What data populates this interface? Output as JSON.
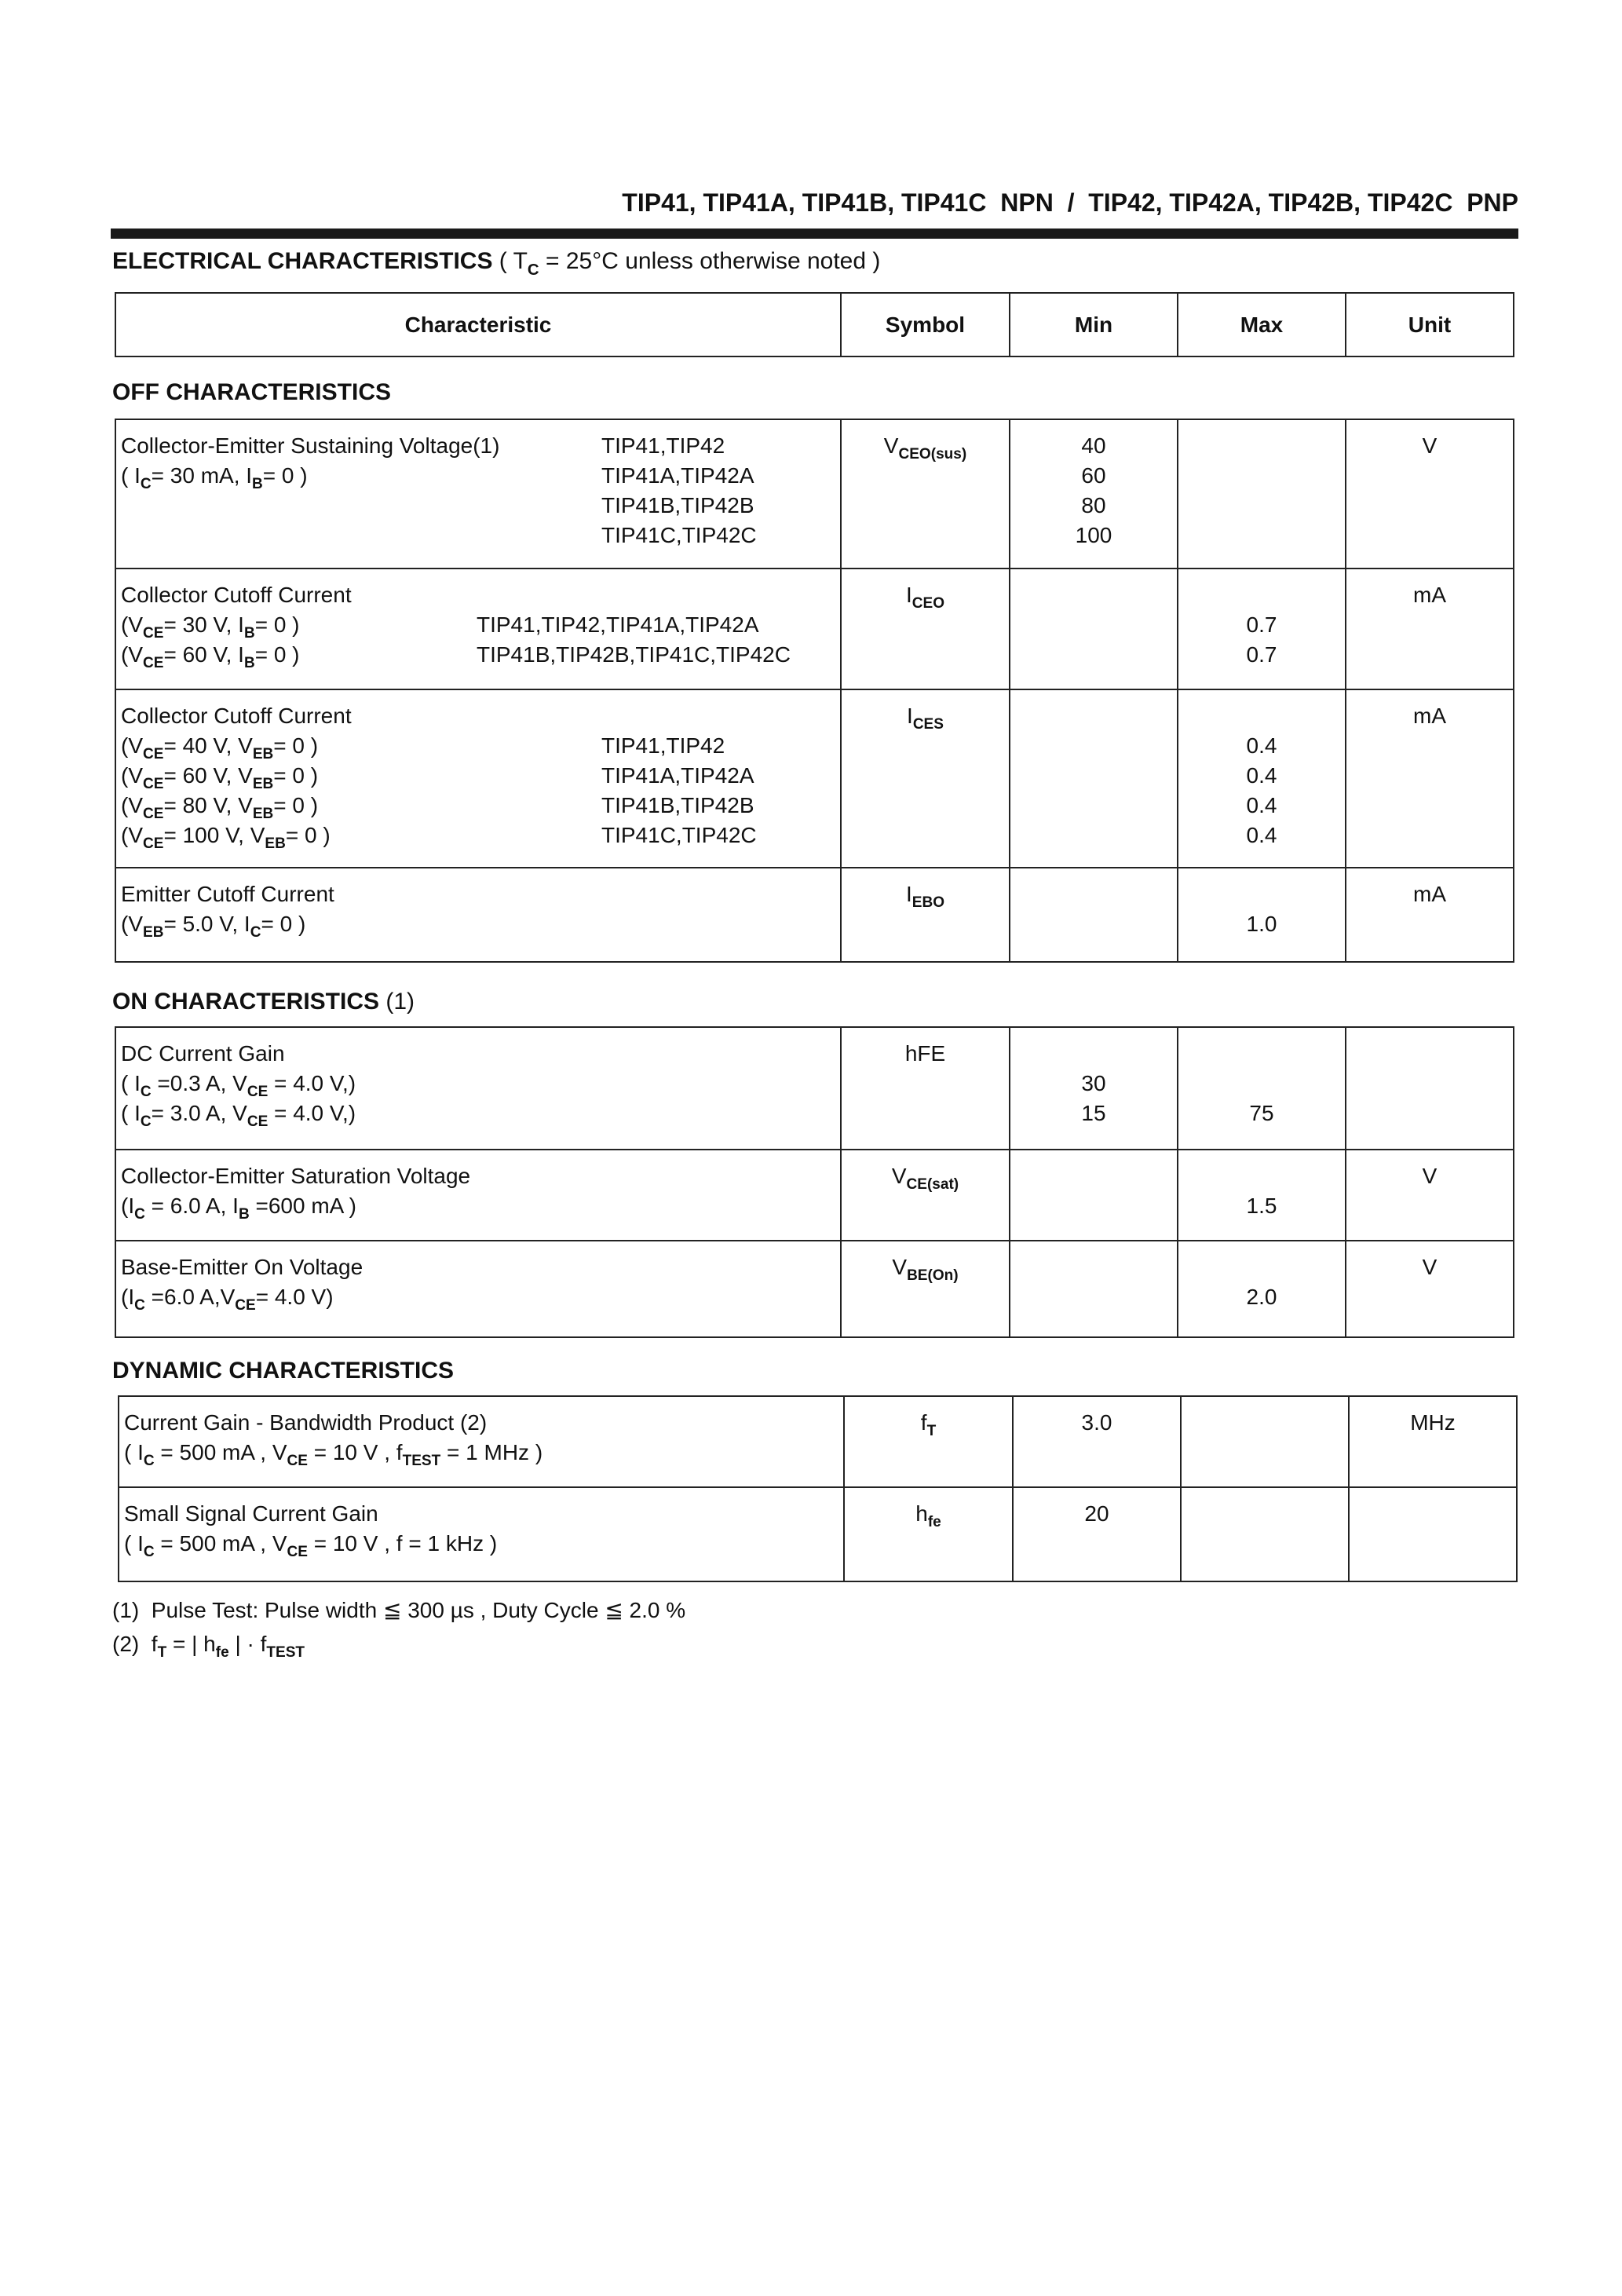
{
  "header": {
    "title": "TIP41, TIP41A, TIP41B, TIP41C  NPN  /  TIP42, TIP42A, TIP42B, TIP42C  PNP"
  },
  "electrical": {
    "heading": "ELECTRICAL CHARACTERISTICS",
    "note": [
      " ( T",
      {
        "sub": "C"
      },
      " = 25°C unless otherwise noted )"
    ]
  },
  "columns": [
    "Characteristic",
    "Symbol",
    "Min",
    "Max",
    "Unit"
  ],
  "sections": [
    {
      "title": "OFF CHARACTERISTICS",
      "rows": [
        {
          "lines": [
            [
              "Collector-Emitter Sustaining Voltage(1)"
            ],
            [
              "( I",
              {
                "sub": "C"
              },
              "= 30 mA, I",
              {
                "sub": "B"
              },
              "= 0 )"
            ]
          ],
          "devices": [
            "TIP41,TIP42",
            "TIP41A,TIP42A",
            "TIP41B,TIP42B",
            "TIP41C,TIP42C"
          ],
          "symbol": [
            "V",
            {
              "sub": "CEO(sus)"
            }
          ],
          "min": [
            "40",
            "60",
            "80",
            "100"
          ],
          "max": [],
          "unit": "V"
        },
        {
          "lines": [
            [
              "Collector Cutoff Current"
            ],
            [
              "(V",
              {
                "sub": "CE"
              },
              "= 30 V, I",
              {
                "sub": "B"
              },
              "= 0 )"
            ],
            [
              "(V",
              {
                "sub": "CE"
              },
              "= 60 V, I",
              {
                "sub": "B"
              },
              "= 0 )"
            ]
          ],
          "devices": [
            "",
            "TIP41,TIP42,TIP41A,TIP42A",
            "TIP41B,TIP42B,TIP41C,TIP42C"
          ],
          "symbol": [
            "I",
            {
              "sub": "CEO"
            }
          ],
          "min": [],
          "max": [
            "",
            "0.7",
            "0.7"
          ],
          "unit": "mA"
        },
        {
          "lines": [
            [
              "Collector Cutoff Current"
            ],
            [
              "(V",
              {
                "sub": "CE"
              },
              "= 40 V, V",
              {
                "sub": "EB"
              },
              "= 0 )"
            ],
            [
              "(V",
              {
                "sub": "CE"
              },
              "= 60 V, V",
              {
                "sub": "EB"
              },
              "= 0 )"
            ],
            [
              "(V",
              {
                "sub": "CE"
              },
              "= 80 V, V",
              {
                "sub": "EB"
              },
              "= 0 )"
            ],
            [
              "(V",
              {
                "sub": "CE"
              },
              "= 100 V, V",
              {
                "sub": "EB"
              },
              "= 0 )"
            ]
          ],
          "devices": [
            "",
            "TIP41,TIP42",
            "TIP41A,TIP42A",
            "TIP41B,TIP42B",
            "TIP41C,TIP42C"
          ],
          "symbol": [
            "I",
            {
              "sub": "CES"
            }
          ],
          "min": [],
          "max": [
            "",
            "0.4",
            "0.4",
            "0.4",
            "0.4"
          ],
          "unit": "mA"
        },
        {
          "lines": [
            [
              "Emitter Cutoff Current"
            ],
            [
              "(V",
              {
                "sub": "EB"
              },
              "= 5.0 V, I",
              {
                "sub": "C"
              },
              "= 0 )"
            ]
          ],
          "devices": [],
          "symbol": [
            "I",
            {
              "sub": "EBO"
            }
          ],
          "min": [],
          "max": [
            "",
            "1.0"
          ],
          "unit": "mA"
        }
      ]
    },
    {
      "title": "ON CHARACTERISTICS",
      "title_note": " (1)",
      "rows": [
        {
          "lines": [
            [
              "DC Current Gain"
            ],
            [
              "( I",
              {
                "sub": "C"
              },
              " =0.3 A, V",
              {
                "sub": "CE"
              },
              " = 4.0 V,)"
            ],
            [
              "( I",
              {
                "sub": "C"
              },
              "= 3.0 A, V",
              {
                "sub": "CE"
              },
              " = 4.0 V,)"
            ]
          ],
          "devices": [],
          "symbol": [
            "hFE"
          ],
          "min": [
            "",
            "30",
            "15"
          ],
          "max": [
            "",
            "",
            "75"
          ],
          "unit": ""
        },
        {
          "lines": [
            [
              "Collector-Emitter Saturation Voltage"
            ],
            [
              "(I",
              {
                "sub": "C"
              },
              " = 6.0 A, I",
              {
                "sub": "B"
              },
              " =600 mA )"
            ]
          ],
          "devices": [],
          "symbol": [
            "V",
            {
              "sub": "CE(sat)"
            }
          ],
          "min": [],
          "max": [
            "",
            "1.5"
          ],
          "unit": "V"
        },
        {
          "lines": [
            [
              "Base-Emitter On Voltage"
            ],
            [
              "(I",
              {
                "sub": "C"
              },
              " =6.0 A,V",
              {
                "sub": "CE"
              },
              "= 4.0 V)"
            ]
          ],
          "devices": [],
          "symbol": [
            "V",
            {
              "sub": "BE(On)"
            }
          ],
          "min": [],
          "max": [
            "",
            "2.0"
          ],
          "unit": "V"
        }
      ]
    },
    {
      "title": "DYNAMIC CHARACTERISTICS",
      "rows": [
        {
          "lines": [
            [
              "Current Gain - Bandwidth Product (2)"
            ],
            [
              "( I",
              {
                "sub": "C"
              },
              " = 500 mA , V",
              {
                "sub": "CE"
              },
              " = 10 V , f",
              {
                "sub": "TEST"
              },
              " = 1 MHz )"
            ]
          ],
          "devices": [],
          "symbol": [
            "f",
            {
              "sub": "T"
            }
          ],
          "min": [
            "3.0"
          ],
          "max": [],
          "unit": "MHz"
        },
        {
          "lines": [
            [
              "Small Signal Current Gain"
            ],
            [
              "( I",
              {
                "sub": "C"
              },
              " = 500 mA , V",
              {
                "sub": "CE"
              },
              " = 10 V , f = 1 kHz )"
            ]
          ],
          "devices": [],
          "symbol": [
            "h",
            {
              "sub": "fe"
            }
          ],
          "min": [
            "20"
          ],
          "max": [],
          "unit": ""
        }
      ]
    }
  ],
  "footnotes": [
    [
      "(1)  Pulse Test: Pulse width ≦ 300 µs , Duty Cycle ≦ 2.0 %"
    ],
    [
      "(2)  f",
      {
        "sub": "T"
      },
      " = | h",
      {
        "sub": "fe"
      },
      " | · f",
      {
        "sub": "TEST"
      }
    ]
  ]
}
